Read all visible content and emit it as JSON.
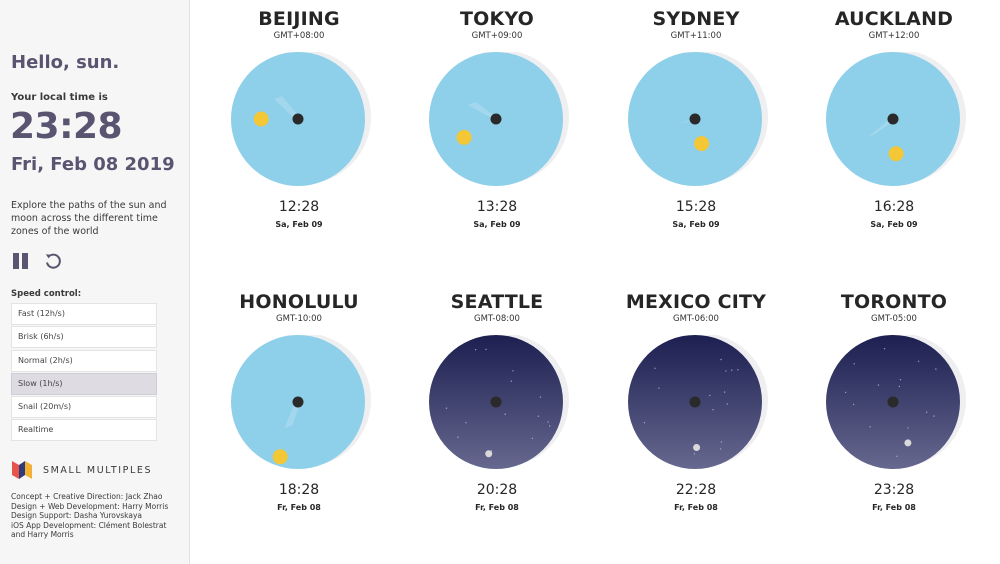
{
  "sidebar": {
    "greeting": "Hello, sun.",
    "local_label": "Your local time is",
    "local_time": "23:28",
    "local_date": "Fri, Feb 08 2019",
    "explore": "Explore the paths of the sun and moon across the different time zones of the world",
    "pause_icon": "pause-icon",
    "reset_icon": "reset-icon",
    "speed_label": "Speed control:",
    "speed_options": [
      "Fast (12h/s)",
      "Brisk (6h/s)",
      "Normal (2h/s)",
      "Slow (1h/s)",
      "Snail (20m/s)",
      "Realtime"
    ],
    "selected_speed": "Slow (1h/s)",
    "brand": "SMALL MULTIPLES",
    "credits": [
      "Concept + Creative Direction: Jack Zhao",
      "Design + Web Development: Harry Morris",
      "Design Support: Dasha Yurovskaya",
      "iOS App Development: Clément Bolestrat and Harry Morris"
    ]
  },
  "colors": {
    "day_sky": "#8ecfe9",
    "night_sky_top": "#1c1f50",
    "night_sky_bottom": "#66688f",
    "sun": "#f3c735",
    "moon": "#d9d9d9",
    "accent": "#5b5470"
  },
  "cities": [
    {
      "name": "BEIJING",
      "gmt": "GMT+08:00",
      "time": "12:28",
      "date": "Sa, Feb 09",
      "sky": "day",
      "sun": true,
      "body_angle": 180,
      "body_r": 0.55,
      "shadow_angle": 135
    },
    {
      "name": "TOKYO",
      "gmt": "GMT+09:00",
      "time": "13:28",
      "date": "Sa, Feb 09",
      "sky": "day",
      "sun": true,
      "body_angle": 210,
      "body_r": 0.55,
      "shadow_angle": 150
    },
    {
      "name": "SYDNEY",
      "gmt": "GMT+11:00",
      "time": "15:28",
      "date": "Sa, Feb 09",
      "sky": "day",
      "sun": true,
      "body_angle": 285,
      "body_r": 0.38,
      "shadow_angle": 200
    },
    {
      "name": "AUCKLAND",
      "gmt": "GMT+12:00",
      "time": "16:28",
      "date": "Sa, Feb 09",
      "sky": "day",
      "sun": true,
      "body_angle": 275,
      "body_r": 0.52,
      "shadow_angle": 220
    },
    {
      "name": "HONOLULU",
      "gmt": "GMT-10:00",
      "time": "18:28",
      "date": "Fr, Feb 08",
      "sky": "day",
      "sun": true,
      "body_angle": 252,
      "body_r": 0.86,
      "shadow_angle": 250
    },
    {
      "name": "SEATTLE",
      "gmt": "GMT-08:00",
      "time": "20:28",
      "date": "Fr, Feb 08",
      "sky": "night",
      "sun": false,
      "body_angle": 262,
      "body_r": 0.78,
      "shadow_angle": 0
    },
    {
      "name": "MEXICO CITY",
      "gmt": "GMT-06:00",
      "time": "22:28",
      "date": "Fr, Feb 08",
      "sky": "night",
      "sun": false,
      "body_angle": 272,
      "body_r": 0.68,
      "shadow_angle": 0
    },
    {
      "name": "TORONTO",
      "gmt": "GMT-05:00",
      "time": "23:28",
      "date": "Fr, Feb 08",
      "sky": "night",
      "sun": false,
      "body_angle": 290,
      "body_r": 0.65,
      "shadow_angle": 0
    }
  ]
}
